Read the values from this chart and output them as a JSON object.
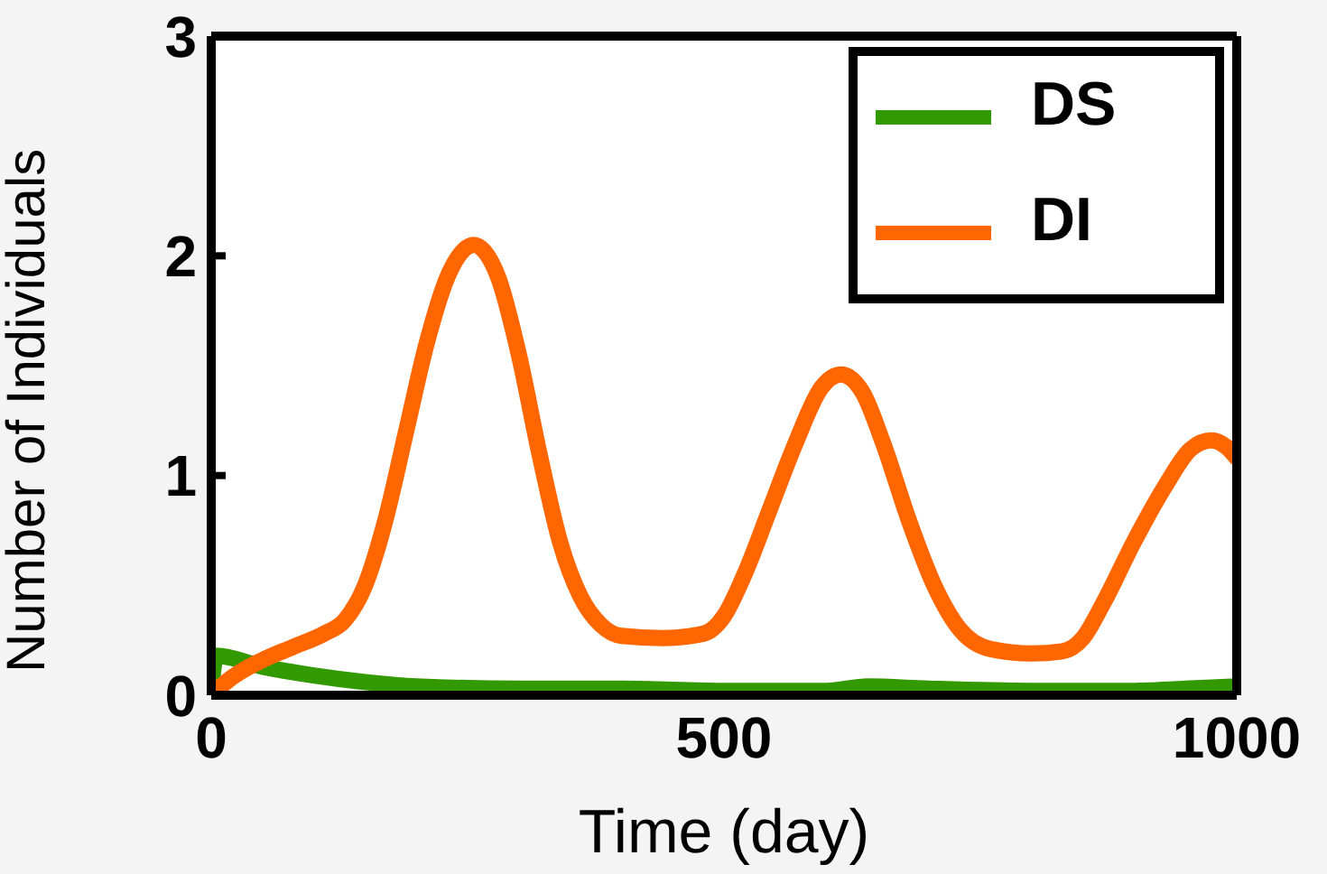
{
  "chart_data": {
    "type": "line",
    "xlabel": "Time (day)",
    "ylabel": "Number of Individuals",
    "xlim": [
      0,
      1000
    ],
    "xticks": [
      0,
      500,
      1000
    ],
    "ylim": [
      0,
      3
    ],
    "yticks": [
      0,
      1,
      2,
      3
    ],
    "grid": false,
    "legend": "top right",
    "marker": "none",
    "line_style": "solid",
    "series": [
      {
        "name": "DS",
        "color": "#339900",
        "x": [
          0,
          5,
          50,
          100,
          150,
          200,
          300,
          400,
          500,
          600,
          640,
          700,
          800,
          900,
          950,
          1000
        ],
        "values": [
          0.03,
          0.18,
          0.13,
          0.09,
          0.06,
          0.04,
          0.03,
          0.03,
          0.02,
          0.02,
          0.04,
          0.03,
          0.02,
          0.02,
          0.03,
          0.04
        ]
      },
      {
        "name": "DI",
        "color": "#ff6600",
        "x": [
          0,
          20,
          50,
          80,
          110,
          130,
          150,
          170,
          190,
          210,
          230,
          256,
          280,
          300,
          320,
          340,
          360,
          380,
          400,
          440,
          480,
          500,
          520,
          545,
          570,
          595,
          614,
          635,
          655,
          680,
          705,
          730,
          760,
          800,
          830,
          850,
          870,
          900,
          930,
          955,
          975,
          990,
          1000
        ],
        "values": [
          0,
          0.08,
          0.16,
          0.22,
          0.28,
          0.34,
          0.5,
          0.8,
          1.2,
          1.6,
          1.9,
          2.05,
          1.9,
          1.55,
          1.1,
          0.7,
          0.45,
          0.32,
          0.27,
          0.26,
          0.28,
          0.36,
          0.55,
          0.85,
          1.15,
          1.4,
          1.46,
          1.38,
          1.15,
          0.8,
          0.5,
          0.3,
          0.21,
          0.19,
          0.2,
          0.26,
          0.42,
          0.7,
          0.95,
          1.12,
          1.16,
          1.13,
          1.08
        ]
      }
    ]
  }
}
